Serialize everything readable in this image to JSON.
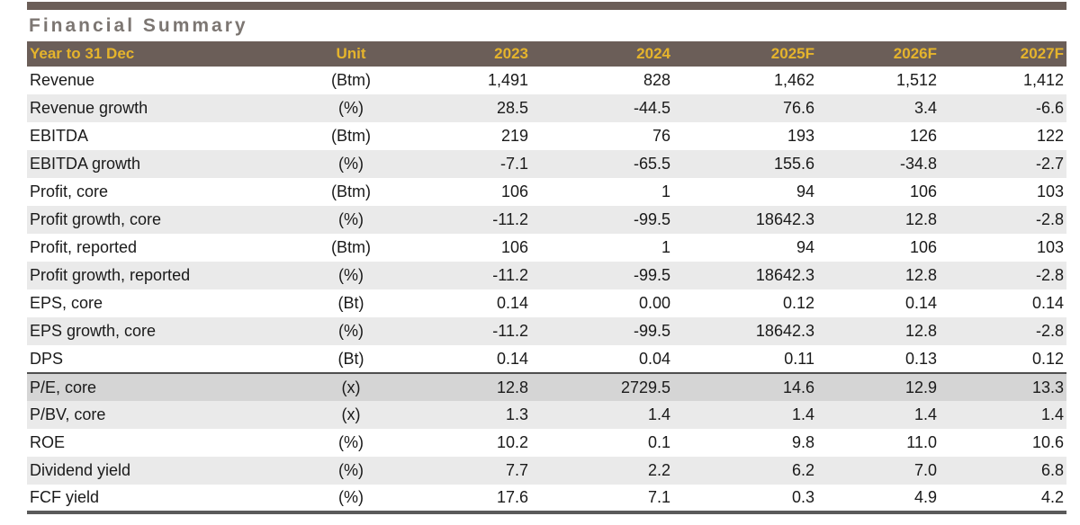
{
  "title": "Financial Summary",
  "colors": {
    "header_background": "#6b5e58",
    "header_text": "#e5b42c",
    "title_text": "#7c7672",
    "stripe_row": "#eaeaea",
    "valuation_highlight_row": "#d5d5d5",
    "body_text": "#1a1a1a"
  },
  "table": {
    "columns": [
      {
        "label": "Year to 31 Dec",
        "align": "left"
      },
      {
        "label": "Unit",
        "align": "center"
      },
      {
        "label": "2023",
        "align": "right"
      },
      {
        "label": "2024",
        "align": "right"
      },
      {
        "label": "2025F",
        "align": "right"
      },
      {
        "label": "2026F",
        "align": "right"
      },
      {
        "label": "2027F",
        "align": "right"
      }
    ],
    "rows": [
      {
        "label": "Revenue",
        "unit": "(Btm)",
        "section": "performance",
        "values": [
          "1,491",
          "828",
          "1,462",
          "1,512",
          "1,412"
        ]
      },
      {
        "label": "Revenue growth",
        "unit": "(%)",
        "section": "performance",
        "values": [
          "28.5",
          "-44.5",
          "76.6",
          "3.4",
          "-6.6"
        ]
      },
      {
        "label": "EBITDA",
        "unit": "(Btm)",
        "section": "performance",
        "values": [
          "219",
          "76",
          "193",
          "126",
          "122"
        ]
      },
      {
        "label": "EBITDA growth",
        "unit": "(%)",
        "section": "performance",
        "values": [
          "-7.1",
          "-65.5",
          "155.6",
          "-34.8",
          "-2.7"
        ]
      },
      {
        "label": "Profit, core",
        "unit": "(Btm)",
        "section": "performance",
        "values": [
          "106",
          "1",
          "94",
          "106",
          "103"
        ]
      },
      {
        "label": "Profit growth, core",
        "unit": "(%)",
        "section": "performance",
        "values": [
          "-11.2",
          "-99.5",
          "18642.3",
          "12.8",
          "-2.8"
        ]
      },
      {
        "label": "Profit, reported",
        "unit": "(Btm)",
        "section": "performance",
        "values": [
          "106",
          "1",
          "94",
          "106",
          "103"
        ]
      },
      {
        "label": "Profit growth, reported",
        "unit": "(%)",
        "section": "performance",
        "values": [
          "-11.2",
          "-99.5",
          "18642.3",
          "12.8",
          "-2.8"
        ]
      },
      {
        "label": "EPS, core",
        "unit": "(Bt)",
        "section": "performance",
        "values": [
          "0.14",
          "0.00",
          "0.12",
          "0.14",
          "0.14"
        ]
      },
      {
        "label": "EPS growth, core",
        "unit": "(%)",
        "section": "performance",
        "values": [
          "-11.2",
          "-99.5",
          "18642.3",
          "12.8",
          "-2.8"
        ]
      },
      {
        "label": "DPS",
        "unit": "(Bt)",
        "section": "performance",
        "values": [
          "0.14",
          "0.04",
          "0.11",
          "0.13",
          "0.12"
        ]
      },
      {
        "label": "P/E, core",
        "unit": "(x)",
        "section": "valuation",
        "values": [
          "12.8",
          "2729.5",
          "14.6",
          "12.9",
          "13.3"
        ]
      },
      {
        "label": "P/BV, core",
        "unit": "(x)",
        "section": "valuation",
        "values": [
          "1.3",
          "1.4",
          "1.4",
          "1.4",
          "1.4"
        ]
      },
      {
        "label": "ROE",
        "unit": "(%)",
        "section": "valuation",
        "values": [
          "10.2",
          "0.1",
          "9.8",
          "11.0",
          "10.6"
        ]
      },
      {
        "label": "Dividend yield",
        "unit": "(%)",
        "section": "valuation",
        "values": [
          "7.7",
          "2.2",
          "6.2",
          "7.0",
          "6.8"
        ]
      },
      {
        "label": "FCF yield",
        "unit": "(%)",
        "section": "valuation",
        "values": [
          "17.6",
          "7.1",
          "0.3",
          "4.9",
          "4.2"
        ]
      }
    ]
  }
}
